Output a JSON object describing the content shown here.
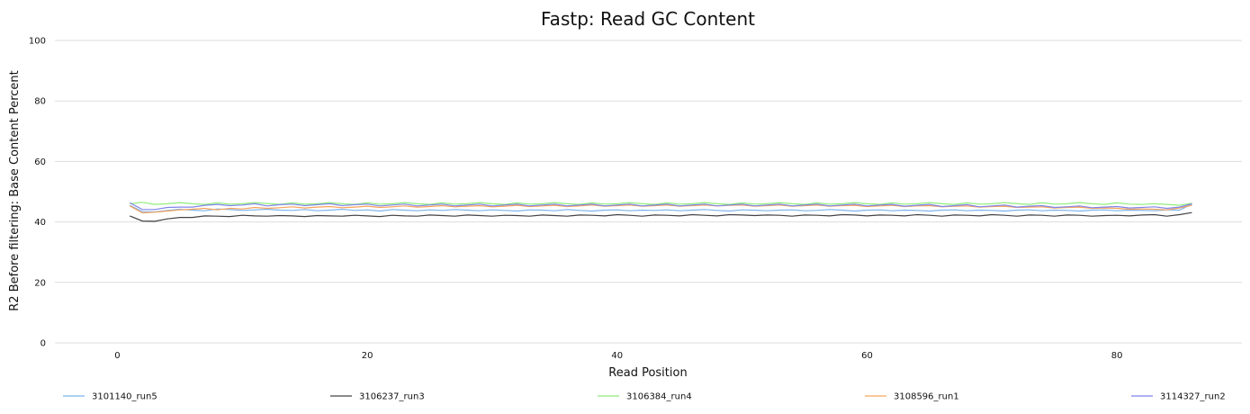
{
  "chart_data": {
    "type": "line",
    "title": "Fastp: Read GC Content",
    "xlabel": "Read Position",
    "ylabel": "R2 Before filtering: Base Content Percent",
    "xlim": [
      -5,
      90
    ],
    "ylim": [
      0,
      100
    ],
    "xticks": [
      0,
      20,
      40,
      60,
      80
    ],
    "yticks": [
      0,
      20,
      40,
      60,
      80,
      100
    ],
    "grid": "horizontal",
    "legend": "bottom",
    "x_range": [
      1,
      86
    ],
    "series": [
      {
        "name": "3101140_run5",
        "color": "#7cb5ec",
        "values": [
          45.5,
          43.4,
          43.3,
          43.8,
          44.2,
          43.9,
          43.7,
          44.3,
          44.1,
          43.8,
          44.0,
          44.2,
          43.9,
          43.8,
          44.1,
          43.7,
          43.9,
          44.2,
          43.8,
          44.0,
          43.6,
          44.1,
          43.9,
          43.7,
          44.0,
          43.8,
          44.1,
          43.9,
          43.7,
          44.0,
          43.8,
          43.6,
          44.0,
          43.9,
          43.7,
          44.1,
          43.8,
          43.6,
          43.9,
          44.0,
          43.7,
          43.9,
          43.8,
          44.0,
          43.7,
          43.9,
          44.1,
          43.8,
          43.6,
          44.0,
          43.9,
          43.7,
          43.9,
          44.0,
          43.7,
          43.8,
          44.1,
          43.9,
          43.6,
          43.9,
          44.0,
          43.7,
          43.9,
          43.8,
          43.6,
          43.9,
          44.0,
          43.7,
          43.9,
          43.8,
          43.6,
          43.9,
          44.0,
          43.7,
          43.9,
          43.8,
          43.6,
          43.9,
          44.0,
          43.7,
          43.9,
          43.8,
          43.7,
          44.0,
          43.9,
          45.9
        ]
      },
      {
        "name": "3106237_run3",
        "color": "#434348",
        "values": [
          42.0,
          40.3,
          40.2,
          41.0,
          41.5,
          41.5,
          42.0,
          41.9,
          41.8,
          42.2,
          42.0,
          41.9,
          42.1,
          42.0,
          41.8,
          42.1,
          42.0,
          41.9,
          42.2,
          42.0,
          41.8,
          42.2,
          42.0,
          41.9,
          42.3,
          42.1,
          41.9,
          42.3,
          42.1,
          41.9,
          42.2,
          42.1,
          41.9,
          42.3,
          42.1,
          41.9,
          42.3,
          42.2,
          42.0,
          42.4,
          42.2,
          41.9,
          42.3,
          42.2,
          42.0,
          42.4,
          42.2,
          42.0,
          42.4,
          42.3,
          42.1,
          42.3,
          42.2,
          41.9,
          42.3,
          42.2,
          42.0,
          42.4,
          42.3,
          42.0,
          42.3,
          42.2,
          42.0,
          42.4,
          42.2,
          41.9,
          42.3,
          42.2,
          42.0,
          42.4,
          42.2,
          41.9,
          42.3,
          42.2,
          41.9,
          42.3,
          42.2,
          41.9,
          42.1,
          42.2,
          42.0,
          42.3,
          42.4,
          41.9,
          42.4,
          43.1
        ]
      },
      {
        "name": "3106384_run4",
        "color": "#90ed7d",
        "values": [
          46.0,
          46.5,
          45.8,
          46.0,
          46.4,
          46.0,
          45.8,
          46.3,
          45.9,
          46.0,
          46.4,
          46.1,
          45.8,
          46.3,
          45.9,
          46.0,
          46.4,
          46.0,
          45.8,
          46.3,
          45.9,
          46.0,
          46.4,
          46.0,
          45.8,
          46.3,
          45.9,
          46.0,
          46.4,
          46.0,
          45.8,
          46.3,
          45.9,
          46.0,
          46.4,
          46.0,
          45.8,
          46.3,
          45.9,
          46.0,
          46.4,
          46.0,
          45.8,
          46.3,
          45.9,
          46.0,
          46.4,
          46.0,
          45.8,
          46.3,
          45.9,
          46.0,
          46.4,
          46.0,
          45.8,
          46.3,
          45.9,
          46.0,
          46.4,
          46.0,
          45.8,
          46.3,
          45.9,
          46.0,
          46.4,
          46.0,
          45.8,
          46.3,
          45.9,
          46.0,
          46.4,
          46.0,
          45.8,
          46.3,
          45.9,
          46.0,
          46.4,
          46.0,
          45.8,
          46.3,
          45.9,
          45.8,
          46.0,
          45.8,
          45.5,
          46.2
        ]
      },
      {
        "name": "3108596_run1",
        "color": "#f7a35c",
        "values": [
          45.3,
          43.0,
          43.2,
          43.6,
          44.0,
          44.2,
          44.5,
          44.0,
          44.5,
          44.3,
          44.8,
          44.5,
          44.7,
          45.0,
          44.6,
          44.9,
          45.1,
          44.7,
          44.9,
          45.2,
          44.8,
          45.0,
          45.3,
          44.9,
          45.1,
          45.4,
          45.0,
          45.2,
          45.4,
          45.0,
          45.2,
          45.5,
          45.1,
          45.3,
          45.5,
          45.1,
          45.3,
          45.6,
          45.2,
          45.4,
          45.6,
          45.2,
          45.4,
          45.6,
          45.2,
          45.4,
          45.6,
          45.3,
          45.5,
          45.6,
          45.2,
          45.4,
          45.6,
          45.2,
          45.4,
          45.6,
          45.2,
          45.4,
          45.5,
          45.1,
          45.3,
          45.5,
          45.1,
          45.3,
          45.4,
          45.0,
          45.2,
          45.3,
          44.9,
          45.1,
          45.2,
          44.8,
          44.9,
          45.0,
          44.6,
          44.8,
          44.9,
          44.5,
          44.6,
          44.5,
          44.2,
          44.3,
          44.2,
          44.0,
          44.6,
          45.5
        ]
      },
      {
        "name": "3114327_run2",
        "color": "#8085e9",
        "values": [
          46.3,
          44.1,
          44.1,
          44.8,
          44.9,
          44.9,
          45.5,
          45.8,
          45.4,
          45.6,
          46.0,
          45.3,
          45.7,
          45.9,
          45.4,
          45.7,
          46.0,
          45.4,
          45.7,
          45.9,
          45.3,
          45.6,
          45.9,
          45.3,
          45.6,
          45.9,
          45.3,
          45.6,
          45.9,
          45.3,
          45.6,
          45.9,
          45.3,
          45.6,
          45.9,
          45.3,
          45.6,
          45.9,
          45.3,
          45.6,
          45.9,
          45.3,
          45.6,
          45.9,
          45.3,
          45.6,
          45.9,
          45.3,
          45.6,
          45.9,
          45.3,
          45.6,
          45.9,
          45.3,
          45.6,
          45.9,
          45.3,
          45.6,
          45.9,
          45.3,
          45.6,
          45.8,
          45.2,
          45.5,
          45.8,
          45.1,
          45.4,
          45.7,
          45.0,
          45.3,
          45.6,
          44.9,
          45.2,
          45.4,
          44.8,
          45.0,
          45.3,
          44.7,
          44.9,
          45.1,
          44.6,
          44.8,
          45.0,
          44.5,
          44.9,
          46.0
        ]
      }
    ]
  }
}
